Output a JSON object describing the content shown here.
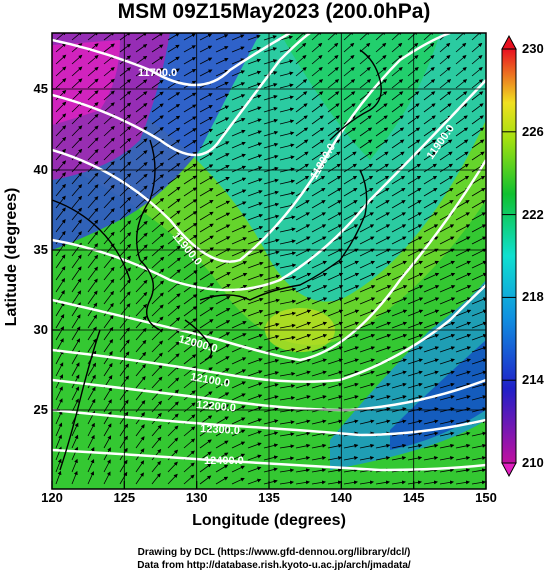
{
  "title": "MSM 09Z15May2023 (200.0hPa)",
  "xlabel": "Longitude (degrees)",
  "ylabel": "Latitude  (degrees)",
  "x_ticks": [
    "120",
    "125",
    "130",
    "135",
    "140",
    "145",
    "150"
  ],
  "y_ticks": [
    "25",
    "30",
    "35",
    "40",
    "45"
  ],
  "colorbar_ticks": [
    "230",
    "226",
    "222",
    "218",
    "214",
    "210"
  ],
  "contour_labels": [
    "11700.0",
    "11800.0",
    "11900.0",
    "11900.0",
    "12000.0",
    "12100.0",
    "12200.0",
    "12300.0",
    "12400.0"
  ],
  "credits": {
    "line1": "Drawing by DCL (https://www.gfd-dennou.org/library/dcl/)",
    "line2": "Data from http://database.rish.kyoto-u.ac.jp/arch/jmadata/"
  },
  "colors": {
    "high": "#e8102a",
    "mid_high": "#f0e020",
    "mid": "#10c040",
    "mid_low": "#10d0e0",
    "low": "#1030c0",
    "lowest": "#c010a0"
  }
}
